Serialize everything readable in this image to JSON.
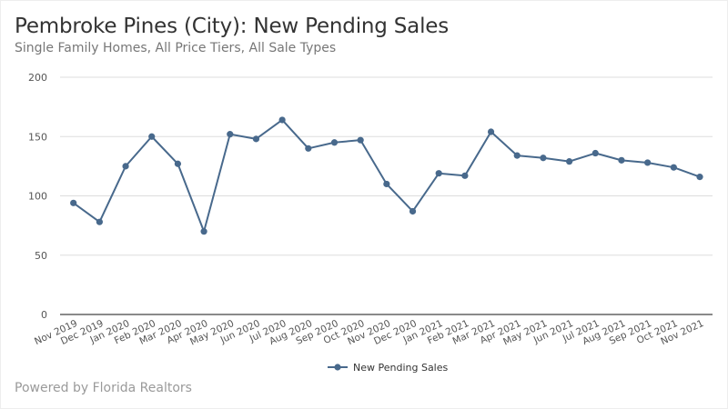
{
  "header": {
    "title": "Pembroke Pines (City): New Pending Sales",
    "subtitle": "Single Family Homes, All Price Tiers, All Sale Types"
  },
  "footer": {
    "credit": "Powered by Florida Realtors"
  },
  "colors": {
    "series": "#48698c",
    "grid": "#dddddd",
    "axis": "#444444"
  },
  "chart_data": {
    "type": "line",
    "title": "Pembroke Pines (City): New Pending Sales",
    "subtitle": "Single Family Homes, All Price Tiers, All Sale Types",
    "xlabel": "",
    "ylabel": "",
    "ylim": [
      0,
      200
    ],
    "yticks": [
      0,
      50,
      100,
      150,
      200
    ],
    "grid": true,
    "legend_position": "bottom",
    "categories": [
      "Nov 2019",
      "Dec 2019",
      "Jan 2020",
      "Feb 2020",
      "Mar 2020",
      "Apr 2020",
      "May 2020",
      "Jun 2020",
      "Jul 2020",
      "Aug 2020",
      "Sep 2020",
      "Oct 2020",
      "Nov 2020",
      "Dec 2020",
      "Jan 2021",
      "Feb 2021",
      "Mar 2021",
      "Apr 2021",
      "May 2021",
      "Jun 2021",
      "Jul 2021",
      "Aug 2021",
      "Sep 2021",
      "Oct 2021",
      "Nov 2021"
    ],
    "series": [
      {
        "name": "New Pending Sales",
        "values": [
          94,
          78,
          125,
          150,
          127,
          70,
          152,
          148,
          164,
          140,
          145,
          147,
          110,
          87,
          119,
          117,
          154,
          134,
          132,
          129,
          136,
          130,
          128,
          124,
          116
        ]
      }
    ]
  }
}
